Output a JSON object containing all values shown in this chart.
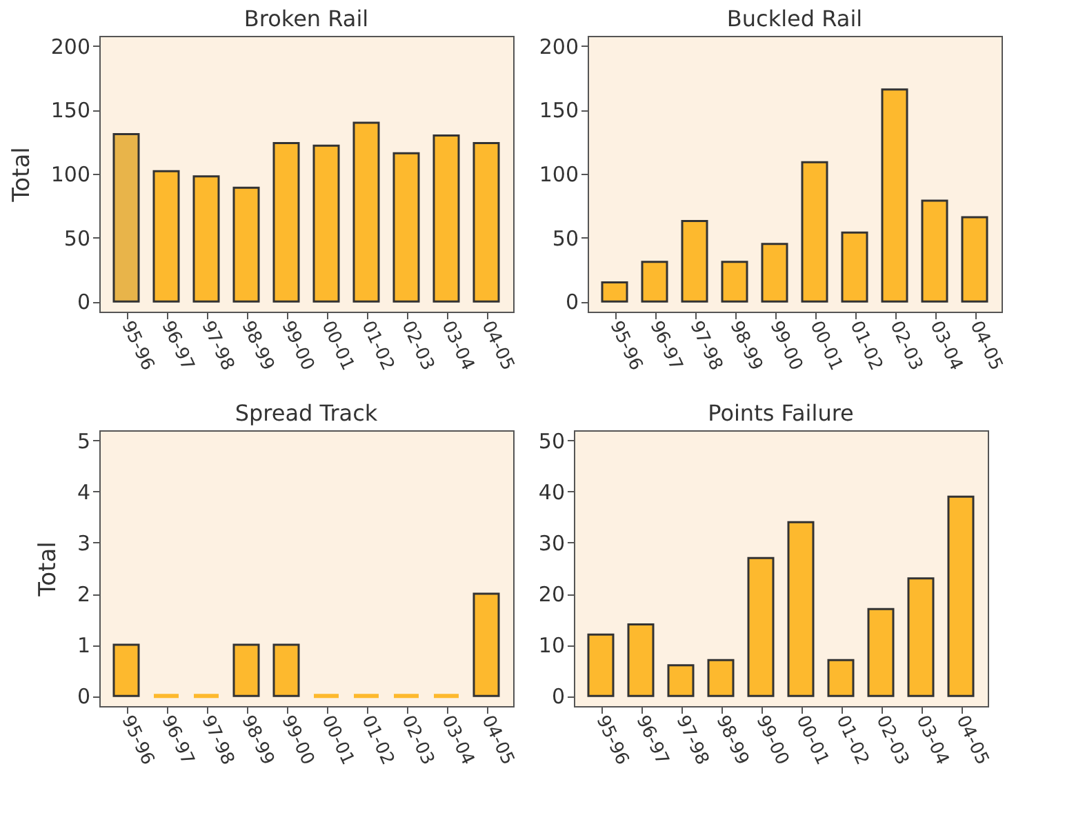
{
  "chart_data": [
    {
      "type": "bar",
      "title": "Broken Rail",
      "ylabel": "Total",
      "categories": [
        "95-96",
        "96-97",
        "97-98",
        "98-99",
        "99-00",
        "00-01",
        "01-02",
        "02-03",
        "03-04",
        "04-05"
      ],
      "values": [
        131,
        102,
        98,
        89,
        124,
        122,
        140,
        116,
        130,
        124
      ],
      "colors": [
        "#e8b44a",
        "#fdb92e",
        "#fdb92e",
        "#fdb92e",
        "#fdb92e",
        "#fdb92e",
        "#fdb92e",
        "#fdb92e",
        "#fdb92e",
        "#fdb92e"
      ],
      "ylim": [
        -8,
        208
      ],
      "yticks": [
        0,
        50,
        100,
        150,
        200
      ]
    },
    {
      "type": "bar",
      "title": "Buckled Rail",
      "categories": [
        "95-96",
        "96-97",
        "97-98",
        "98-99",
        "99-00",
        "00-01",
        "01-02",
        "02-03",
        "03-04",
        "04-05"
      ],
      "values": [
        15,
        31,
        63,
        31,
        45,
        109,
        54,
        166,
        79,
        66
      ],
      "colors": [
        "#fdb92e",
        "#fdb92e",
        "#fdb92e",
        "#fdb92e",
        "#fdb92e",
        "#fdb92e",
        "#fdb92e",
        "#fdb92e",
        "#fdb92e",
        "#fdb92e"
      ],
      "ylim": [
        -8,
        208
      ],
      "yticks": [
        0,
        50,
        100,
        150,
        200
      ]
    },
    {
      "type": "bar",
      "title": "Spread Track",
      "ylabel": "Total",
      "categories": [
        "95-96",
        "96-97",
        "97-98",
        "98-99",
        "99-00",
        "00-01",
        "01-02",
        "02-03",
        "03-04",
        "04-05"
      ],
      "values": [
        1,
        0,
        0,
        1,
        1,
        0,
        0,
        0,
        0,
        2
      ],
      "colors": [
        "#fdb92e",
        "#fdb92e",
        "#fdb92e",
        "#fdb92e",
        "#fdb92e",
        "#fdb92e",
        "#fdb92e",
        "#fdb92e",
        "#fdb92e",
        "#fdb92e"
      ],
      "ylim": [
        -0.2,
        5.2
      ],
      "yticks": [
        0,
        1,
        2,
        3,
        4,
        5
      ]
    },
    {
      "type": "bar",
      "title": "Points Failure",
      "categories": [
        "95-96",
        "96-97",
        "97-98",
        "98-99",
        "99-00",
        "00-01",
        "01-02",
        "02-03",
        "03-04",
        "04-05"
      ],
      "values": [
        12,
        14,
        6,
        7,
        27,
        34,
        7,
        17,
        23,
        39
      ],
      "colors": [
        "#fdb92e",
        "#fdb92e",
        "#fdb92e",
        "#fdb92e",
        "#fdb92e",
        "#fdb92e",
        "#fdb92e",
        "#fdb92e",
        "#fdb92e",
        "#fdb92e"
      ],
      "ylim": [
        -2,
        52
      ],
      "yticks": [
        0,
        10,
        20,
        30,
        40,
        50
      ]
    }
  ]
}
